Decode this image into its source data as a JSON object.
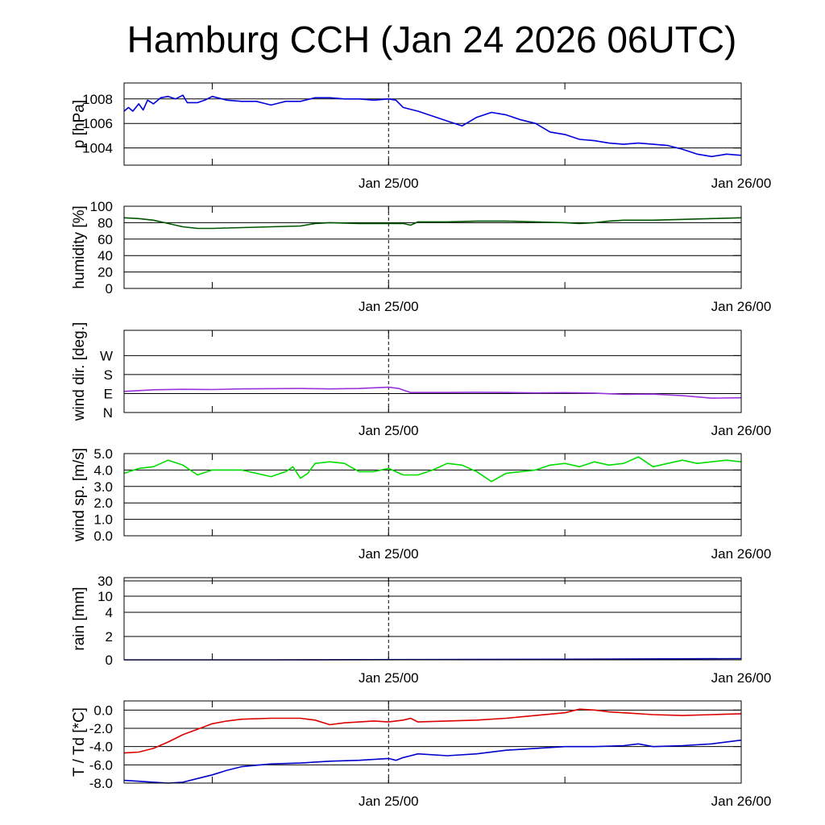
{
  "title": "Hamburg CCH (Jan 24 2026 06UTC)",
  "x_axis": {
    "range_hours": [
      0,
      42
    ],
    "ticks_hours": [
      6,
      18,
      30,
      42
    ],
    "labels": [
      {
        "hours": 18,
        "text": "Jan 25/00"
      },
      {
        "hours": 42,
        "text": "Jan 26/00"
      }
    ],
    "midnight_marker_hours": 18
  },
  "chart_data": [
    {
      "type": "line",
      "name": "pressure",
      "ylabel": "p [hPa]",
      "ylim": [
        1002.6,
        1009.3
      ],
      "yticks": [
        1004,
        1006,
        1008
      ],
      "ytick_labels": [
        "1004",
        "1006",
        "1008"
      ],
      "grid": true,
      "series": [
        {
          "color": "#0000dd",
          "points": [
            [
              0,
              1007.0
            ],
            [
              0.3,
              1007.3
            ],
            [
              0.6,
              1007.0
            ],
            [
              1,
              1007.6
            ],
            [
              1.3,
              1007.1
            ],
            [
              1.6,
              1007.9
            ],
            [
              2,
              1007.6
            ],
            [
              2.5,
              1008.1
            ],
            [
              3,
              1008.2
            ],
            [
              3.5,
              1008.0
            ],
            [
              4,
              1008.3
            ],
            [
              4.3,
              1007.7
            ],
            [
              5,
              1007.7
            ],
            [
              5.5,
              1007.9
            ],
            [
              6,
              1008.2
            ],
            [
              7,
              1007.9
            ],
            [
              8,
              1007.8
            ],
            [
              9,
              1007.8
            ],
            [
              10,
              1007.5
            ],
            [
              11,
              1007.8
            ],
            [
              12,
              1007.8
            ],
            [
              13,
              1008.1
            ],
            [
              14,
              1008.1
            ],
            [
              15,
              1008.0
            ],
            [
              16,
              1008.0
            ],
            [
              17,
              1007.9
            ],
            [
              18,
              1008.0
            ],
            [
              18.5,
              1007.9
            ],
            [
              19,
              1007.3
            ],
            [
              20,
              1007.0
            ],
            [
              21,
              1006.6
            ],
            [
              22,
              1006.2
            ],
            [
              23,
              1005.8
            ],
            [
              24,
              1006.5
            ],
            [
              25,
              1006.9
            ],
            [
              26,
              1006.7
            ],
            [
              27,
              1006.3
            ],
            [
              28,
              1006.0
            ],
            [
              29,
              1005.3
            ],
            [
              30,
              1005.1
            ],
            [
              31,
              1004.7
            ],
            [
              32,
              1004.6
            ],
            [
              33,
              1004.4
            ],
            [
              34,
              1004.3
            ],
            [
              35,
              1004.4
            ],
            [
              36,
              1004.3
            ],
            [
              37,
              1004.2
            ],
            [
              38,
              1003.9
            ],
            [
              39,
              1003.5
            ],
            [
              40,
              1003.3
            ],
            [
              41,
              1003.5
            ],
            [
              42,
              1003.4
            ]
          ]
        }
      ]
    },
    {
      "type": "line",
      "name": "humidity",
      "ylabel": "humidity [%]",
      "ylim": [
        0,
        100
      ],
      "yticks": [
        0,
        20,
        40,
        60,
        80,
        100
      ],
      "ytick_labels": [
        "0",
        "20",
        "40",
        "60",
        "80",
        "100"
      ],
      "grid": true,
      "series": [
        {
          "color": "#005500",
          "points": [
            [
              0,
              86
            ],
            [
              1,
              85
            ],
            [
              2,
              83
            ],
            [
              3,
              79
            ],
            [
              4,
              75
            ],
            [
              5,
              73
            ],
            [
              6,
              73
            ],
            [
              8,
              74
            ],
            [
              10,
              75
            ],
            [
              12,
              76
            ],
            [
              13,
              79
            ],
            [
              14,
              80
            ],
            [
              16,
              79
            ],
            [
              18,
              79
            ],
            [
              19,
              79
            ],
            [
              19.5,
              77
            ],
            [
              20,
              81
            ],
            [
              22,
              81
            ],
            [
              24,
              82
            ],
            [
              26,
              82
            ],
            [
              28,
              81
            ],
            [
              30,
              80
            ],
            [
              31,
              79
            ],
            [
              32,
              80
            ],
            [
              33,
              82
            ],
            [
              34,
              83
            ],
            [
              36,
              83
            ],
            [
              38,
              84
            ],
            [
              40,
              85
            ],
            [
              42,
              86
            ]
          ]
        }
      ]
    },
    {
      "type": "line",
      "name": "wind direction",
      "ylabel": "wind dir. [deg.]",
      "ylim": [
        0,
        390
      ],
      "yticks": [
        0,
        90,
        180,
        270
      ],
      "ytick_labels": [
        "N",
        "E",
        "S",
        "W"
      ],
      "grid": true,
      "series": [
        {
          "color": "#9933dd",
          "points": [
            [
              0,
              100
            ],
            [
              2,
              108
            ],
            [
              4,
              110
            ],
            [
              6,
              109
            ],
            [
              8,
              112
            ],
            [
              10,
              113
            ],
            [
              12,
              114
            ],
            [
              14,
              112
            ],
            [
              16,
              114
            ],
            [
              18,
              120
            ],
            [
              18.7,
              114
            ],
            [
              19.5,
              95
            ],
            [
              22,
              95
            ],
            [
              24,
              96
            ],
            [
              26,
              95
            ],
            [
              28,
              93
            ],
            [
              30,
              94
            ],
            [
              32,
              92
            ],
            [
              34,
              86
            ],
            [
              36,
              87
            ],
            [
              38,
              80
            ],
            [
              40,
              68
            ],
            [
              42,
              70
            ]
          ]
        }
      ]
    },
    {
      "type": "line",
      "name": "wind speed",
      "ylabel": "wind sp. [m/s]",
      "ylim": [
        0,
        5
      ],
      "yticks": [
        0,
        1,
        2,
        3,
        4,
        5
      ],
      "ytick_labels": [
        "0.0",
        "1.0",
        "2.0",
        "3.0",
        "4.0",
        "5.0"
      ],
      "grid": true,
      "series": [
        {
          "color": "#00dd00",
          "points": [
            [
              0,
              3.8
            ],
            [
              1,
              4.1
            ],
            [
              2,
              4.2
            ],
            [
              3,
              4.6
            ],
            [
              4,
              4.3
            ],
            [
              5,
              3.7
            ],
            [
              6,
              4.0
            ],
            [
              8,
              4.0
            ],
            [
              9,
              3.8
            ],
            [
              10,
              3.6
            ],
            [
              11,
              3.9
            ],
            [
              11.5,
              4.2
            ],
            [
              12,
              3.5
            ],
            [
              12.5,
              3.8
            ],
            [
              13,
              4.4
            ],
            [
              14,
              4.5
            ],
            [
              15,
              4.4
            ],
            [
              16,
              3.9
            ],
            [
              17,
              3.9
            ],
            [
              18,
              4.1
            ],
            [
              19,
              3.7
            ],
            [
              20,
              3.7
            ],
            [
              21,
              4.0
            ],
            [
              22,
              4.4
            ],
            [
              23,
              4.3
            ],
            [
              24,
              3.9
            ],
            [
              25,
              3.3
            ],
            [
              26,
              3.8
            ],
            [
              27,
              3.9
            ],
            [
              28,
              4.0
            ],
            [
              29,
              4.3
            ],
            [
              30,
              4.4
            ],
            [
              31,
              4.2
            ],
            [
              32,
              4.5
            ],
            [
              33,
              4.3
            ],
            [
              34,
              4.4
            ],
            [
              35,
              4.8
            ],
            [
              36,
              4.2
            ],
            [
              37,
              4.4
            ],
            [
              38,
              4.6
            ],
            [
              39,
              4.4
            ],
            [
              40,
              4.5
            ],
            [
              41,
              4.6
            ],
            [
              42,
              4.5
            ]
          ]
        }
      ]
    },
    {
      "type": "line",
      "name": "rain",
      "ylabel": "rain [mm]",
      "ylim": [
        0,
        30
      ],
      "yticks": [
        0,
        2,
        4,
        10,
        30
      ],
      "ytick_labels": [
        "0",
        "2",
        "4",
        "10",
        "30"
      ],
      "grid": true,
      "series": [
        {
          "color": "#0000aa",
          "points": [
            [
              0,
              0
            ],
            [
              10,
              0
            ],
            [
              20,
              0.02
            ],
            [
              30,
              0.05
            ],
            [
              42,
              0.1
            ]
          ]
        }
      ]
    },
    {
      "type": "line",
      "name": "temperature",
      "ylabel": "T / Td [*C]",
      "ylim": [
        -8,
        1
      ],
      "yticks": [
        -8,
        -6,
        -4,
        -2,
        0
      ],
      "ytick_labels": [
        "-8.0",
        "-6.0",
        "-4.0",
        "-2.0",
        "0.0"
      ],
      "grid": true,
      "series": [
        {
          "color": "#dd0000",
          "points": [
            [
              0,
              -4.7
            ],
            [
              1,
              -4.6
            ],
            [
              2,
              -4.2
            ],
            [
              3,
              -3.5
            ],
            [
              4,
              -2.7
            ],
            [
              5,
              -2.1
            ],
            [
              6,
              -1.5
            ],
            [
              7,
              -1.2
            ],
            [
              8,
              -1.0
            ],
            [
              10,
              -0.9
            ],
            [
              12,
              -0.9
            ],
            [
              13,
              -1.1
            ],
            [
              14,
              -1.6
            ],
            [
              15,
              -1.4
            ],
            [
              16,
              -1.3
            ],
            [
              17,
              -1.2
            ],
            [
              18,
              -1.3
            ],
            [
              19,
              -1.1
            ],
            [
              19.5,
              -0.9
            ],
            [
              20,
              -1.3
            ],
            [
              22,
              -1.2
            ],
            [
              24,
              -1.1
            ],
            [
              26,
              -0.9
            ],
            [
              28,
              -0.6
            ],
            [
              30,
              -0.3
            ],
            [
              31,
              0.1
            ],
            [
              32,
              0.0
            ],
            [
              33,
              -0.2
            ],
            [
              34,
              -0.3
            ],
            [
              36,
              -0.5
            ],
            [
              38,
              -0.6
            ],
            [
              40,
              -0.5
            ],
            [
              42,
              -0.4
            ]
          ]
        },
        {
          "color": "#0000cc",
          "points": [
            [
              0,
              -7.7
            ],
            [
              1,
              -7.8
            ],
            [
              2,
              -7.9
            ],
            [
              3,
              -8.0
            ],
            [
              4,
              -7.9
            ],
            [
              5,
              -7.5
            ],
            [
              6,
              -7.1
            ],
            [
              7,
              -6.6
            ],
            [
              8,
              -6.2
            ],
            [
              10,
              -5.9
            ],
            [
              12,
              -5.8
            ],
            [
              14,
              -5.6
            ],
            [
              16,
              -5.5
            ],
            [
              18,
              -5.3
            ],
            [
              18.5,
              -5.5
            ],
            [
              19,
              -5.2
            ],
            [
              20,
              -4.8
            ],
            [
              22,
              -5.0
            ],
            [
              24,
              -4.8
            ],
            [
              26,
              -4.4
            ],
            [
              28,
              -4.2
            ],
            [
              30,
              -4.0
            ],
            [
              32,
              -4.0
            ],
            [
              34,
              -3.9
            ],
            [
              35,
              -3.7
            ],
            [
              36,
              -4.0
            ],
            [
              38,
              -3.9
            ],
            [
              40,
              -3.7
            ],
            [
              42,
              -3.3
            ]
          ]
        }
      ]
    }
  ]
}
